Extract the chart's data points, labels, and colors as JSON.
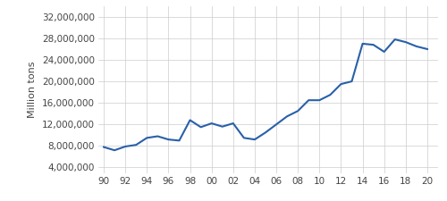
{
  "years": [
    1990,
    1991,
    1992,
    1993,
    1994,
    1995,
    1996,
    1997,
    1998,
    1999,
    2000,
    2001,
    2002,
    2003,
    2004,
    2005,
    2006,
    2007,
    2008,
    2009,
    2010,
    2011,
    2012,
    2013,
    2014,
    2015,
    2016,
    2017,
    2018,
    2019,
    2020
  ],
  "values": [
    7800000,
    7200000,
    7900000,
    8200000,
    9500000,
    9800000,
    9200000,
    9000000,
    12800000,
    11500000,
    12200000,
    11600000,
    12200000,
    9500000,
    9200000,
    10500000,
    12000000,
    13500000,
    14500000,
    16500000,
    16500000,
    17500000,
    19500000,
    20000000,
    27000000,
    26800000,
    25500000,
    27800000,
    27300000,
    26500000,
    26000000
  ],
  "line_color": "#2960a8",
  "line_width": 1.5,
  "yticks": [
    4000000,
    8000000,
    12000000,
    16000000,
    20000000,
    24000000,
    28000000,
    32000000
  ],
  "ytick_labels": [
    "4,000,000",
    "8,000,000",
    "12,000,000",
    "16,000,000",
    "20,000,000",
    "24,000,000",
    "28,000,000",
    "32,000,000"
  ],
  "xtick_labels": [
    "90",
    "92",
    "94",
    "96",
    "98",
    "00",
    "02",
    "04",
    "06",
    "08",
    "10",
    "12",
    "14",
    "16",
    "18",
    "20"
  ],
  "xtick_years": [
    1990,
    1992,
    1994,
    1996,
    1998,
    2000,
    2002,
    2004,
    2006,
    2008,
    2010,
    2012,
    2014,
    2016,
    2018,
    2020
  ],
  "ylabel": "Million tons",
  "ylim": [
    3000000,
    34000000
  ],
  "xlim": [
    1989.5,
    2021
  ],
  "background_color": "#ffffff",
  "grid_color": "#cccccc",
  "ylabel_fontsize": 8,
  "tick_fontsize": 7.5
}
